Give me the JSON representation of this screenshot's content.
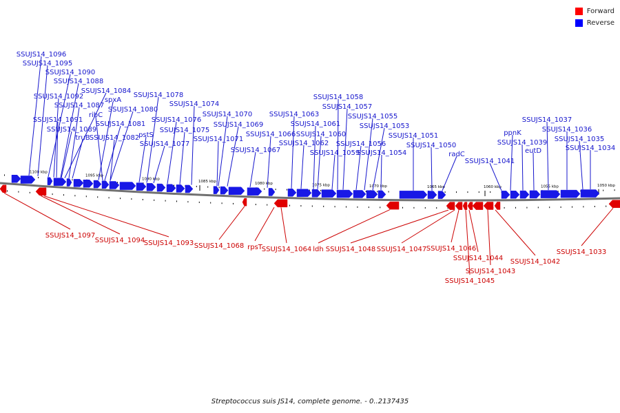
{
  "legend": {
    "forward": {
      "label": "Forward",
      "color": "#ff0000"
    },
    "reverse": {
      "label": "Reverse",
      "color": "#0000ff"
    }
  },
  "colors": {
    "forward_gene": "#e00000",
    "reverse_gene": "#1818e6",
    "forward_label": "#cc0000",
    "reverse_label": "#1414cc",
    "backbone": "#707070"
  },
  "caption": "Streptococcus suis JS14, complete genome. - 0..2137435",
  "scale": {
    "unit": "kbp",
    "ticks": [
      "1100 kbp",
      "1095 kbp",
      "1090 kbp",
      "1085 kbp",
      "1080 kbp",
      "1075 kbp",
      "1070 kbp",
      "1065 kbp",
      "1060 kbp",
      "1055 kbp",
      "1050 kbp"
    ]
  },
  "reverse_labels": [
    "SSUJS14_1096",
    "SSUJS14_1095",
    "SSUJS14_1090",
    "SSUJS14_1088",
    "SSUJS14_1084",
    "SSUJS14_1092",
    "spxA",
    "SSUJS14_1087",
    "ribC",
    "SSUJS14_1080",
    "SSUJS14_1091",
    "SSUJS14_1081",
    "SSUJS14_1089",
    "truB",
    "SSUJS14_1082",
    "pstS",
    "SSUJS14_1077",
    "SSUJS14_1078",
    "SSUJS14_1076",
    "SSUJS14_1075",
    "SSUJS14_1074",
    "SSUJS14_1070",
    "SSUJS14_1069",
    "SSUJS14_1071",
    "SSUJS14_1067",
    "SSUJS14_1066",
    "SSUJS14_1063",
    "SSUJS14_1061",
    "SSUJS14_1060",
    "SSUJS14_1062",
    "SSUJS14_1059",
    "SSUJS14_1058",
    "SSUJS14_1057",
    "SSUJS14_1055",
    "SSUJS14_1053",
    "SSUJS14_1056",
    "SSUJS14_1054",
    "SSUJS14_1051",
    "SSUJS14_1050",
    "radC",
    "SSUJS14_1041",
    "ppnK",
    "SSUJS14_1039",
    "eutD",
    "SSUJS14_1037",
    "SSUJS14_1036",
    "SSUJS14_1035",
    "SSUJS14_1034"
  ],
  "forward_labels": [
    "SSUJS14_1097",
    "SSUJS14_1094",
    "SSUJS14_1093",
    "SSUJS14_1068",
    "rpsT",
    "SSUJS14_1064",
    "ldh",
    "SSUJS14_1048",
    "SSUJS14_1047",
    "SSUJS14_1046",
    "SSUJS14_1044",
    "SSUJS14_1043",
    "SSUJS14_1045",
    "SSUJS14_1042",
    "SSUJS14_1033"
  ]
}
